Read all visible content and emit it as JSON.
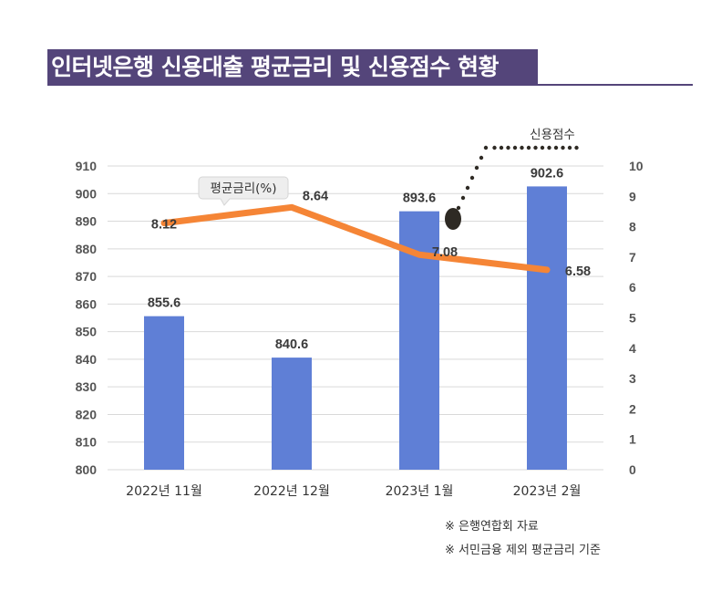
{
  "title": "인터넷은행 신용대출 평균금리 및 신용점수 현황",
  "colors": {
    "title_bg": "#54457a",
    "bar": "#5f7fd6",
    "line": "#f58536",
    "dots": "#2e2a24",
    "grid": "#d9d9d9"
  },
  "chart_data": {
    "type": "bar",
    "title": "인터넷은행 신용대출 평균금리 및 신용점수 현황",
    "categories": [
      "2022년 11월",
      "2022년 12월",
      "2023년 1월",
      "2023년 2월"
    ],
    "series": [
      {
        "name": "신용점수",
        "type": "bar",
        "axis": "left",
        "values": [
          855.6,
          840.6,
          893.6,
          902.6
        ],
        "labels": [
          "855.6",
          "840.6",
          "893.6",
          "902.6"
        ]
      },
      {
        "name": "평균금리(%)",
        "type": "line",
        "axis": "right",
        "values": [
          8.12,
          8.64,
          7.08,
          6.58
        ],
        "labels": [
          "8.12",
          "8.64",
          "7.08",
          "6.58"
        ]
      }
    ],
    "left_axis": {
      "min": 800,
      "max": 910,
      "step": 10,
      "ticks": [
        "800",
        "810",
        "820",
        "830",
        "840",
        "850",
        "860",
        "870",
        "880",
        "890",
        "900",
        "910"
      ]
    },
    "right_axis": {
      "min": 0,
      "max": 10,
      "step": 1,
      "ticks": [
        "0",
        "1",
        "2",
        "3",
        "4",
        "5",
        "6",
        "7",
        "8",
        "9",
        "10"
      ]
    },
    "grid": true,
    "annotations": [
      {
        "text": "평균금리(%)",
        "type": "callout",
        "target": "line"
      },
      {
        "text": "신용점수",
        "type": "dotted-leader",
        "target": "bars"
      }
    ]
  },
  "notes": [
    "※ 은행연합회 자료",
    "※ 서민금융 제외 평균금리 기준"
  ]
}
